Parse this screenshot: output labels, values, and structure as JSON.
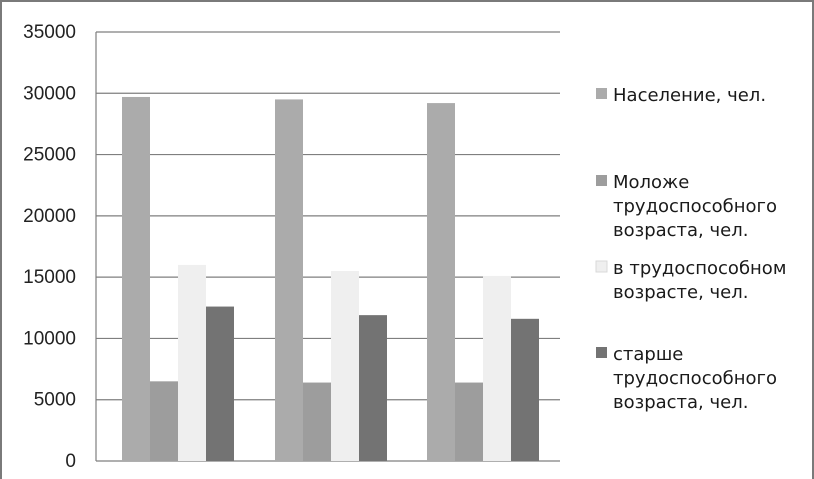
{
  "chart_data": {
    "type": "bar",
    "categories": [
      "",
      "",
      ""
    ],
    "series": [
      {
        "name": "Население, чел.",
        "values": [
          29700,
          29500,
          29200
        ],
        "color": "#ababab"
      },
      {
        "name": "Моложе трудоспособного возраста, чел.",
        "values": [
          6500,
          6400,
          6400
        ],
        "color": "#9d9d9d"
      },
      {
        "name": "в трудоспособном возрасте, чел.",
        "values": [
          16000,
          15500,
          15100
        ],
        "color": "#efefef"
      },
      {
        "name": "старше трудоспособного возраста, чел.",
        "values": [
          12600,
          11900,
          11600
        ],
        "color": "#737373"
      }
    ],
    "legend_lines": [
      [
        "Население, чел."
      ],
      [
        "Моложе",
        "трудоспособного",
        "возраста, чел."
      ],
      [
        "в трудоспособном",
        "возрасте, чел."
      ],
      [
        "старше",
        "трудоспособного",
        "возраста, чел."
      ]
    ],
    "ylim": [
      0,
      35000
    ],
    "yticks": [
      "0",
      "5000",
      "10000",
      "15000",
      "20000",
      "25000",
      "30000",
      "35000"
    ],
    "grid": true,
    "legend": "right",
    "title": "",
    "xlabel": "",
    "ylabel": ""
  }
}
